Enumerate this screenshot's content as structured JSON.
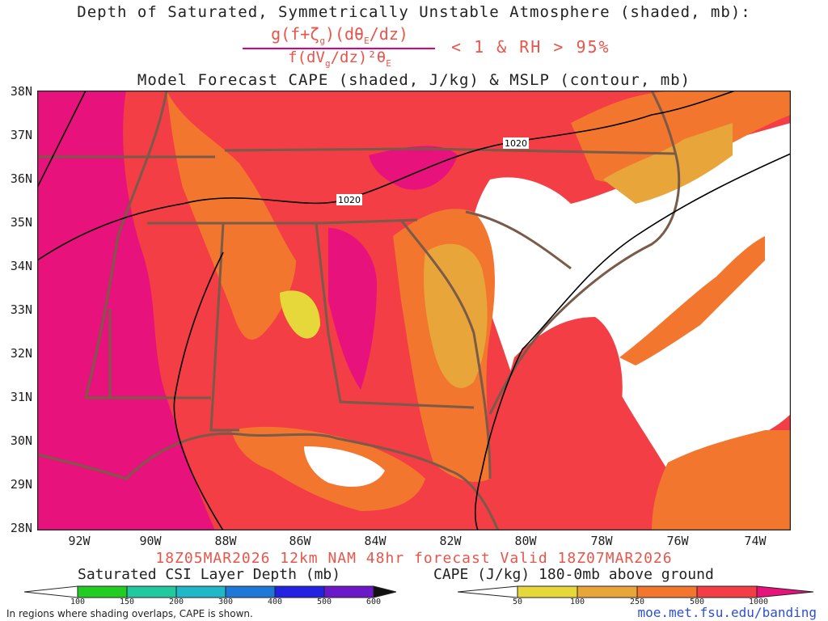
{
  "header": {
    "title_line1": "Depth of Saturated, Symmetrically Unstable Atmosphere (shaded, mb):",
    "numerator": "g(f+ζ",
    "numerator_sub": "g",
    "numerator_rest": ")(dθ",
    "numerator_sub2": "E",
    "numerator_end": "/dz)",
    "denominator": "f(dV",
    "denominator_sub": "g",
    "denominator_rest": "/dz)²θ",
    "denominator_sub2": "E",
    "condition": "< 1 & RH > 95%",
    "title_line3": "Model Forecast CAPE (shaded, J/kg) & MSLP (contour, mb)"
  },
  "map": {
    "lat_labels": [
      "38N",
      "37N",
      "36N",
      "35N",
      "34N",
      "33N",
      "32N",
      "31N",
      "30N",
      "29N",
      "28N"
    ],
    "lon_labels": [
      "92W",
      "90W",
      "88W",
      "86W",
      "84W",
      "82W",
      "80W",
      "78W",
      "76W",
      "74W"
    ],
    "isobar_labels": [
      "1020",
      "1020"
    ],
    "colors": {
      "cape_1000": "#e8127c",
      "cape_500": "#f23e44",
      "cape_250": "#f2762e",
      "cape_100": "#e8a53a",
      "cape_50": "#e6d83a",
      "state_lines": "#7a5a48",
      "isobar": "#000000"
    }
  },
  "footer": {
    "valid_line": "18Z05MAR2026 12km NAM 48hr forecast Valid 18Z07MAR2026",
    "csi_title": "Saturated CSI Layer Depth (mb)",
    "csi_ticks": [
      "100",
      "150",
      "200",
      "300",
      "400",
      "500",
      "600"
    ],
    "cape_title": "CAPE (J/kg) 180-0mb above ground",
    "cape_ticks": [
      "50",
      "100",
      "250",
      "500",
      "1000"
    ],
    "note": "In regions where shading overlaps, CAPE is shown.",
    "credit": "moe.met.fsu.edu/banding"
  }
}
